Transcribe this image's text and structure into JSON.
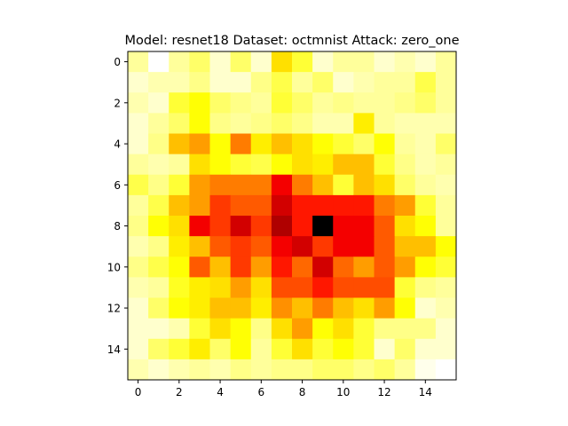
{
  "chart_data": {
    "type": "heatmap",
    "title": "Model: resnet18 Dataset: octmnist Attack: zero_one",
    "xlabel": "",
    "ylabel": "",
    "colormap": "hot",
    "rows": 16,
    "cols": 16,
    "x_ticks": [
      "0",
      "2",
      "4",
      "6",
      "8",
      "10",
      "12",
      "14"
    ],
    "y_ticks": [
      "0",
      "2",
      "4",
      "6",
      "8",
      "10",
      "12",
      "14"
    ],
    "xlim": [
      -0.5,
      15.5
    ],
    "ylim": [
      15.5,
      -0.5
    ],
    "y_axis_inverted": true,
    "grid": false,
    "values": [
      [
        0.1,
        0.0,
        0.1,
        0.15,
        0.05,
        0.15,
        0.05,
        0.3,
        0.2,
        0.05,
        0.1,
        0.1,
        0.05,
        0.08,
        0.05,
        0.1
      ],
      [
        0.05,
        0.08,
        0.08,
        0.12,
        0.05,
        0.05,
        0.12,
        0.18,
        0.1,
        0.15,
        0.05,
        0.08,
        0.1,
        0.1,
        0.18,
        0.1
      ],
      [
        0.08,
        0.05,
        0.2,
        0.25,
        0.15,
        0.12,
        0.1,
        0.2,
        0.15,
        0.1,
        0.12,
        0.1,
        0.1,
        0.12,
        0.15,
        0.1
      ],
      [
        0.05,
        0.1,
        0.15,
        0.25,
        0.12,
        0.1,
        0.12,
        0.15,
        0.12,
        0.08,
        0.08,
        0.28,
        0.1,
        0.08,
        0.08,
        0.08
      ],
      [
        0.05,
        0.12,
        0.35,
        0.4,
        0.25,
        0.45,
        0.28,
        0.35,
        0.3,
        0.25,
        0.2,
        0.15,
        0.25,
        0.1,
        0.08,
        0.15
      ],
      [
        0.1,
        0.08,
        0.1,
        0.3,
        0.25,
        0.2,
        0.18,
        0.25,
        0.3,
        0.28,
        0.35,
        0.35,
        0.2,
        0.12,
        0.08,
        0.1
      ],
      [
        0.18,
        0.12,
        0.2,
        0.4,
        0.45,
        0.45,
        0.45,
        0.65,
        0.45,
        0.35,
        0.2,
        0.35,
        0.3,
        0.15,
        0.1,
        0.08
      ],
      [
        0.1,
        0.18,
        0.35,
        0.4,
        0.55,
        0.5,
        0.5,
        0.7,
        0.6,
        0.6,
        0.6,
        0.6,
        0.45,
        0.4,
        0.2,
        0.1
      ],
      [
        0.12,
        0.25,
        0.3,
        0.65,
        0.55,
        0.7,
        0.55,
        0.75,
        0.6,
        1.0,
        0.65,
        0.65,
        0.5,
        0.3,
        0.25,
        0.1
      ],
      [
        0.08,
        0.12,
        0.28,
        0.35,
        0.5,
        0.55,
        0.5,
        0.65,
        0.7,
        0.55,
        0.65,
        0.65,
        0.5,
        0.35,
        0.35,
        0.25
      ],
      [
        0.12,
        0.18,
        0.25,
        0.5,
        0.35,
        0.55,
        0.4,
        0.6,
        0.48,
        0.7,
        0.48,
        0.4,
        0.5,
        0.4,
        0.25,
        0.2
      ],
      [
        0.08,
        0.1,
        0.22,
        0.28,
        0.3,
        0.4,
        0.3,
        0.52,
        0.52,
        0.6,
        0.52,
        0.52,
        0.52,
        0.2,
        0.12,
        0.1
      ],
      [
        0.05,
        0.15,
        0.25,
        0.28,
        0.35,
        0.35,
        0.28,
        0.42,
        0.35,
        0.45,
        0.35,
        0.3,
        0.4,
        0.25,
        0.05,
        0.08
      ],
      [
        0.05,
        0.05,
        0.08,
        0.2,
        0.3,
        0.25,
        0.12,
        0.3,
        0.4,
        0.25,
        0.3,
        0.2,
        0.12,
        0.12,
        0.12,
        0.05
      ],
      [
        0.05,
        0.15,
        0.2,
        0.28,
        0.15,
        0.25,
        0.1,
        0.2,
        0.3,
        0.2,
        0.25,
        0.2,
        0.05,
        0.15,
        0.05,
        0.05
      ],
      [
        0.08,
        0.05,
        0.08,
        0.1,
        0.08,
        0.12,
        0.1,
        0.12,
        0.12,
        0.15,
        0.15,
        0.12,
        0.15,
        0.1,
        0.02,
        0.0
      ]
    ]
  }
}
